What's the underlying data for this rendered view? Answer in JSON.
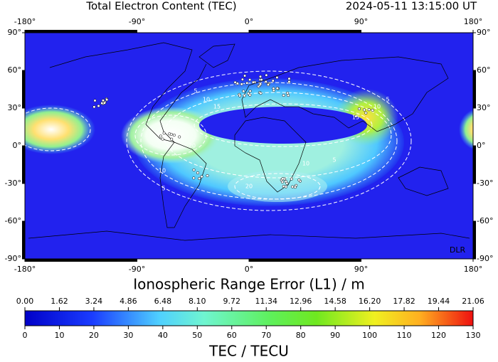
{
  "header": {
    "title": "Total Electron Content (TEC)",
    "timestamp": "2024-05-11  13:15:00 UT"
  },
  "map": {
    "lon_range": [
      -180,
      180
    ],
    "lat_range": [
      -90,
      90
    ],
    "lon_ticks": [
      {
        "value": -180,
        "label": "-180°"
      },
      {
        "value": -90,
        "label": "-90°"
      },
      {
        "value": 0,
        "label": "0°"
      },
      {
        "value": 90,
        "label": "90°"
      },
      {
        "value": 180,
        "label": "180°"
      }
    ],
    "lat_ticks": [
      {
        "value": 90,
        "label": "90°"
      },
      {
        "value": 60,
        "label": "60°"
      },
      {
        "value": 30,
        "label": "30°"
      },
      {
        "value": 0,
        "label": "0°"
      },
      {
        "value": -30,
        "label": "-30°"
      },
      {
        "value": -60,
        "label": "-60°"
      },
      {
        "value": -90,
        "label": "-90°"
      }
    ],
    "credit": "DLR",
    "contour_labels": [
      "5",
      "10",
      "15",
      "5",
      "10",
      "15",
      "20",
      "10",
      "5",
      "10",
      "20",
      "5"
    ]
  },
  "colorbar": {
    "top_title": "Ionospheric Range Error (L1) / m",
    "top_range": [
      0,
      21.06
    ],
    "top_labels": [
      {
        "value": 0,
        "label": "0.00"
      },
      {
        "value": 1.62,
        "label": "1.62"
      },
      {
        "value": 3.24,
        "label": "3.24"
      },
      {
        "value": 4.86,
        "label": "4.86"
      },
      {
        "value": 6.48,
        "label": "6.48"
      },
      {
        "value": 8.1,
        "label": "8.10"
      },
      {
        "value": 9.72,
        "label": "9.72"
      },
      {
        "value": 11.34,
        "label": "11.34"
      },
      {
        "value": 12.96,
        "label": "12.96"
      },
      {
        "value": 14.58,
        "label": "14.58"
      },
      {
        "value": 16.2,
        "label": "16.20"
      },
      {
        "value": 17.82,
        "label": "17.82"
      },
      {
        "value": 19.44,
        "label": "19.44"
      },
      {
        "value": 21.06,
        "label": "21.06"
      }
    ],
    "bottom_range": [
      0,
      130
    ],
    "bottom_labels": [
      0,
      10,
      20,
      30,
      40,
      50,
      60,
      70,
      80,
      90,
      100,
      110,
      120,
      130
    ],
    "bottom_title": "TEC / TECU"
  }
}
